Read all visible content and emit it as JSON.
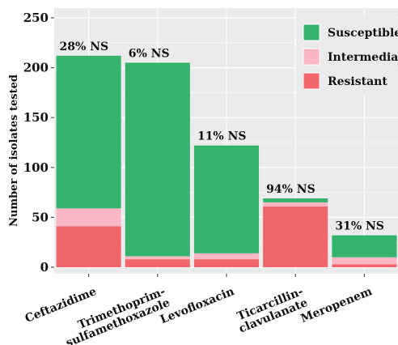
{
  "chart_data": {
    "type": "bar",
    "stacked": true,
    "ylabel": "Number of isolates tested",
    "xlabel": "",
    "ylim": [
      0,
      250
    ],
    "yticks": [
      0,
      50,
      100,
      150,
      200,
      250
    ],
    "grid": true,
    "legend_position": "top-right",
    "categories": [
      [
        "Ceftazidime"
      ],
      [
        "Trimethoprim-",
        "sulfamethoxazole"
      ],
      [
        "Levofloxacin"
      ],
      [
        "Ticarcillin-",
        "clavulanate"
      ],
      [
        "Meropenem"
      ]
    ],
    "series": [
      {
        "name": "Resistant",
        "color": "#F0666A",
        "values": [
          41,
          8,
          8,
          61,
          3
        ]
      },
      {
        "name": "Intermediate",
        "color": "#F9B6C3",
        "values": [
          18,
          3,
          6,
          4,
          7
        ]
      },
      {
        "name": "Susceptible",
        "color": "#35B36E",
        "values": [
          153,
          194,
          108,
          4,
          22
        ]
      }
    ],
    "legend_order": [
      "Susceptible",
      "Intermediate",
      "Resistant"
    ],
    "annotations": [
      "28% NS",
      "6% NS",
      "11% NS",
      "94% NS",
      "31% NS"
    ]
  }
}
